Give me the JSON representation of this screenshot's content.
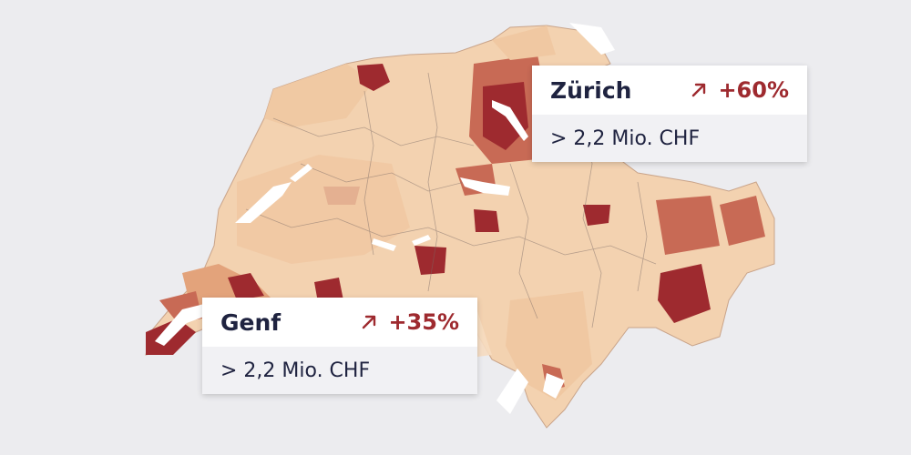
{
  "colors": {
    "background": "#ececef",
    "lightest": "#f6dcc0",
    "light": "#f0c8a2",
    "medium": "#e3a37b",
    "strong": "#c86a55",
    "darkest": "#9e2a2f",
    "lake": "#ffffff"
  },
  "callouts": {
    "zurich": {
      "city": "Zürich",
      "change": "+60%",
      "value": "> 2,2 Mio. CHF",
      "arrow_icon": "arrow-up-right-icon"
    },
    "genf": {
      "city": "Genf",
      "change": "+35%",
      "value": "> 2,2 Mio. CHF",
      "arrow_icon": "arrow-up-right-icon"
    }
  }
}
